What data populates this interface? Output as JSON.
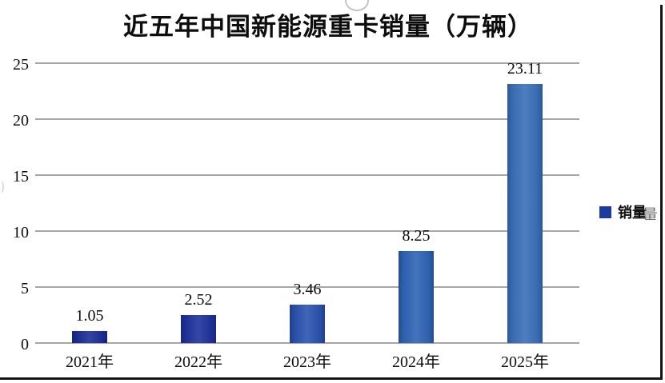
{
  "page": {
    "background": "#ffffff",
    "frame_border_color": "#151515"
  },
  "chart_data": {
    "type": "bar",
    "title": "近五年中国新能源重卡销量（万辆）",
    "categories": [
      "2021年",
      "2022年",
      "2023年",
      "2024年",
      "2025年"
    ],
    "series": [
      {
        "name": "销量",
        "values": [
          1.05,
          2.52,
          3.46,
          8.25,
          23.11
        ]
      }
    ],
    "data_labels": [
      "1.05",
      "2.52",
      "3.46",
      "8.25",
      "23.11"
    ],
    "ylim": [
      0,
      25
    ],
    "yticks": [
      0,
      5,
      10,
      15,
      20,
      25
    ],
    "ytick_labels": [
      "0",
      "5",
      "10",
      "15",
      "20",
      "25"
    ],
    "grid": "horizontal",
    "gridline_color": "#a6a6a6",
    "legend_position": "right-middle",
    "legend_swatch_color": "#1b3c9e",
    "bar_colors": [
      "#1c2e94",
      "#1e339b",
      "#2a52ae",
      "#2f63b4",
      "#3a6fb8"
    ],
    "xlabel": "",
    "ylabel": ""
  },
  "artifacts": {
    "right_edge_fragment": "量"
  }
}
